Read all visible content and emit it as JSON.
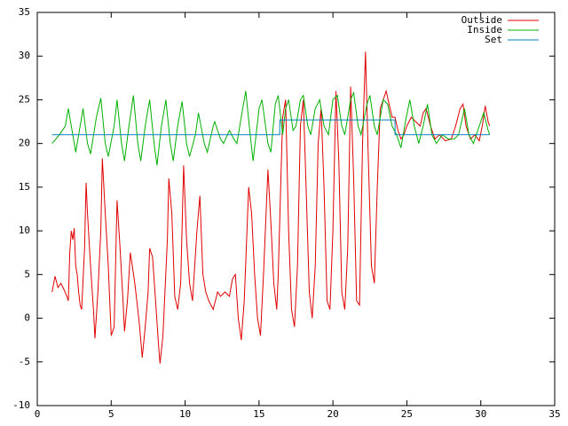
{
  "chart_data": {
    "type": "line",
    "xlim": [
      0,
      35
    ],
    "xticks": [
      0,
      5,
      10,
      15,
      20,
      25,
      30,
      35
    ],
    "ylim": [
      -10,
      35
    ],
    "yticks": [
      -10,
      -5,
      0,
      5,
      10,
      15,
      20,
      25,
      30,
      35
    ],
    "legend": "top-right",
    "series": [
      {
        "name": "Outside",
        "color": "#e00000",
        "x": [
          1.0,
          1.2,
          1.4,
          1.6,
          1.8,
          2.0,
          2.1,
          2.2,
          2.3,
          2.4,
          2.5,
          2.6,
          2.7,
          2.8,
          2.9,
          3.0,
          3.2,
          3.3,
          3.4,
          3.6,
          3.8,
          3.9,
          4.1,
          4.3,
          4.4,
          4.6,
          4.8,
          5.0,
          5.2,
          5.4,
          5.6,
          5.8,
          5.9,
          6.1,
          6.3,
          6.6,
          6.9,
          7.1,
          7.3,
          7.5,
          7.6,
          7.8,
          8.0,
          8.2,
          8.3,
          8.5,
          8.8,
          8.9,
          9.1,
          9.3,
          9.5,
          9.7,
          9.9,
          10.1,
          10.3,
          10.5,
          10.8,
          11.0,
          11.2,
          11.4,
          11.6,
          11.9,
          12.2,
          12.4,
          12.7,
          13.0,
          13.2,
          13.4,
          13.6,
          13.8,
          14.0,
          14.3,
          14.5,
          14.7,
          14.9,
          15.1,
          15.3,
          15.6,
          15.8,
          16.0,
          16.2,
          16.3,
          16.5,
          16.6,
          16.8,
          17.0,
          17.2,
          17.4,
          17.6,
          17.8,
          18.0,
          18.2,
          18.4,
          18.6,
          18.8,
          19.0,
          19.2,
          19.4,
          19.6,
          19.8,
          20.0,
          20.2,
          20.4,
          20.6,
          20.8,
          21.0,
          21.2,
          21.4,
          21.6,
          21.8,
          22.0,
          22.2,
          22.4,
          22.6,
          22.8,
          23.0,
          23.2,
          23.4,
          23.6,
          23.8,
          24.0,
          24.2,
          24.4,
          24.6,
          24.8,
          25.0,
          25.3,
          25.6,
          25.9,
          26.1,
          26.3,
          26.6,
          26.9,
          27.2,
          27.6,
          28.0,
          28.3,
          28.6,
          28.8,
          29.0,
          29.3,
          29.6,
          29.9,
          30.1,
          30.3,
          30.5,
          30.6
        ],
        "values": [
          3,
          4.8,
          3.5,
          4,
          3.3,
          2.5,
          2,
          7.5,
          10,
          9,
          10.3,
          6,
          5,
          3,
          1.5,
          1,
          8,
          15.5,
          12,
          6,
          1,
          -2.3,
          3,
          10,
          18.3,
          12,
          6,
          -2,
          -1,
          13.5,
          8,
          2,
          -1.5,
          2,
          7.5,
          4,
          -0.5,
          -4.5,
          -1,
          3,
          8,
          7,
          2,
          -3,
          -5.2,
          -2,
          9,
          16,
          12,
          2.5,
          1,
          4,
          17.5,
          9,
          4,
          2,
          10,
          14,
          5,
          3,
          2,
          1,
          3,
          2.5,
          3,
          2.5,
          4.5,
          5,
          0,
          -2.5,
          2,
          15,
          12,
          5,
          0,
          -2,
          5,
          17,
          11,
          4,
          1,
          5,
          17,
          23,
          25,
          10,
          1,
          -1,
          6,
          22,
          25,
          14,
          3,
          0,
          6,
          20,
          24,
          15,
          2,
          1,
          10,
          26,
          18,
          3,
          1,
          8,
          26.5,
          16,
          2,
          1.5,
          20,
          30.5,
          18,
          6,
          4,
          15,
          24,
          25,
          26,
          24.5,
          23,
          23,
          21.5,
          20.5,
          21,
          22,
          23,
          22.5,
          22,
          23.5,
          24,
          22,
          20.5,
          21,
          20.3,
          20.5,
          22,
          24,
          24.5,
          22,
          20.5,
          21,
          20.3,
          22,
          24.3,
          22.5,
          22
        ]
      },
      {
        "name": "Inside",
        "color": "#00b000",
        "x": [
          1,
          1.5,
          1.9,
          2.1,
          2.4,
          2.6,
          2.9,
          3.1,
          3.4,
          3.6,
          4.0,
          4.3,
          4.6,
          4.8,
          5.2,
          5.4,
          5.7,
          5.9,
          6.2,
          6.5,
          6.8,
          7.0,
          7.3,
          7.6,
          7.9,
          8.1,
          8.4,
          8.7,
          9.0,
          9.2,
          9.5,
          9.8,
          10.1,
          10.3,
          10.7,
          10.9,
          11.3,
          11.5,
          11.9,
          12.0,
          12.4,
          12.6,
          13.0,
          13.3,
          13.5,
          13.9,
          14.1,
          14.4,
          14.6,
          15.0,
          15.2,
          15.6,
          15.8,
          16.1,
          16.3,
          16.6,
          16.8,
          17.0,
          17.3,
          17.5,
          17.8,
          18.0,
          18.3,
          18.5,
          18.8,
          19.1,
          19.4,
          19.7,
          20.0,
          20.3,
          20.6,
          20.8,
          21.2,
          21.4,
          21.7,
          21.9,
          22.3,
          22.5,
          22.8,
          23.0,
          23.4,
          23.7,
          24.0,
          24.3,
          24.6,
          24.9,
          25.2,
          25.5,
          25.8,
          26.1,
          26.4,
          26.7,
          27.0,
          27.4,
          27.8,
          28.2,
          28.5,
          28.9,
          29.2,
          29.5,
          29.9,
          30.2,
          30.5,
          30.6
        ],
        "values": [
          20,
          21,
          22,
          24,
          21,
          19,
          22,
          24,
          20,
          18.8,
          23,
          25.2,
          20,
          18.5,
          22,
          25,
          20,
          18,
          22,
          25.5,
          20,
          18,
          22,
          25,
          20,
          17.5,
          22,
          25,
          20,
          18,
          22,
          24.8,
          20,
          18.5,
          21,
          23.5,
          20,
          19,
          22,
          22.5,
          20.5,
          20,
          21.5,
          20.5,
          20,
          24,
          26,
          21,
          18,
          24,
          25,
          20,
          19,
          24.5,
          25.5,
          21,
          24,
          25,
          21.5,
          22,
          25,
          25.5,
          22,
          21,
          24,
          25,
          22,
          21,
          25,
          25.5,
          22,
          21,
          25,
          25.8,
          22,
          21,
          24.5,
          25.5,
          22,
          21,
          25,
          24.5,
          22,
          21,
          19.5,
          22.5,
          25,
          22,
          20,
          22,
          24.5,
          21,
          20,
          21,
          20.5,
          20.5,
          21,
          24,
          21,
          20,
          22,
          23.5,
          21.5,
          21
        ]
      },
      {
        "name": "Set",
        "color": "#0080c0",
        "x": [
          1,
          16.4,
          16.4,
          24.2,
          24.2,
          30.6
        ],
        "values": [
          21,
          21,
          22.7,
          22.7,
          21,
          21
        ]
      }
    ]
  }
}
